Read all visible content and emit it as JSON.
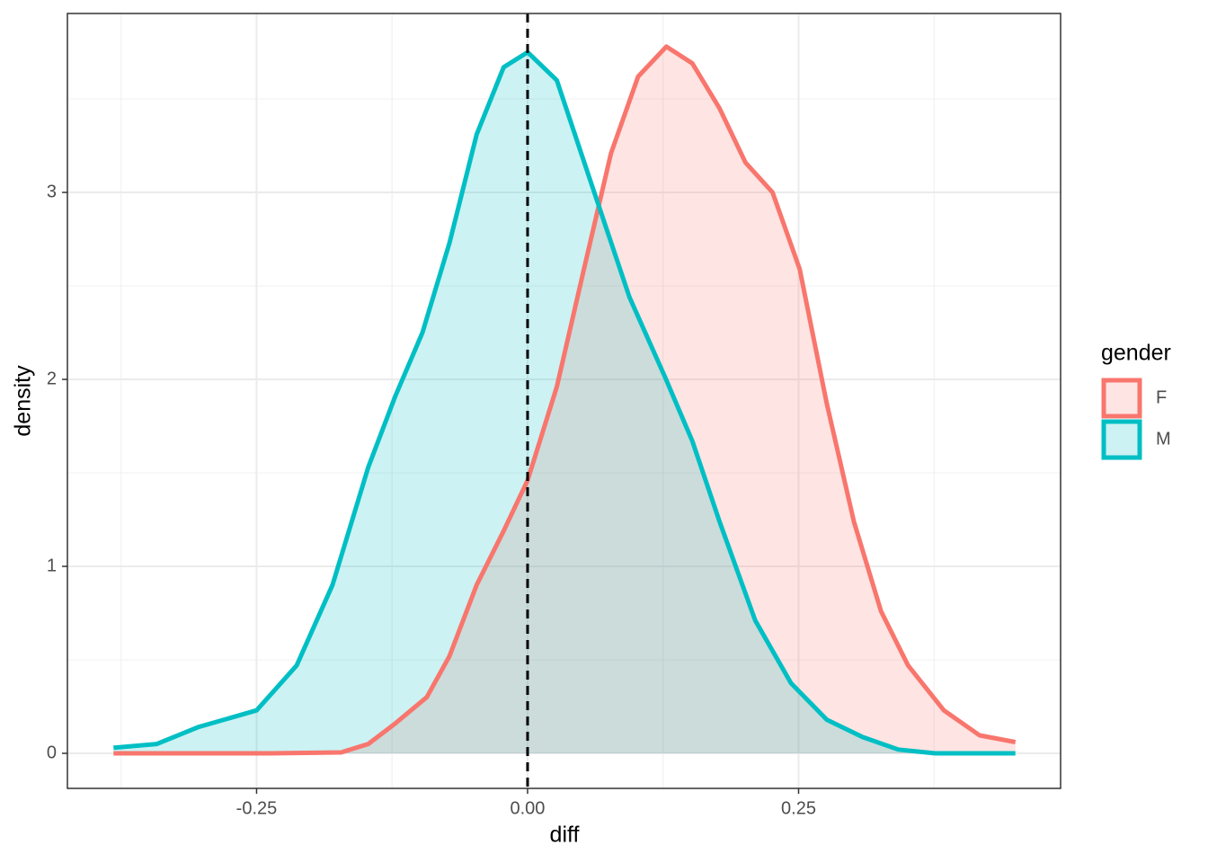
{
  "chart_data": {
    "type": "density",
    "x_label": "diff",
    "y_label": "density",
    "xlim": [
      -0.4245,
      0.4917
    ],
    "ylim": [
      -0.1875,
      3.957
    ],
    "xticks": [
      -0.25,
      {
        "value": 0,
        "label": "0.00"
      },
      0.25
    ],
    "yticks": [
      0,
      1,
      2,
      3
    ],
    "grid": true,
    "vline": 0,
    "legend_title": "gender",
    "legend_position": "right",
    "series": [
      {
        "name": "F",
        "color": "#F8766D",
        "x": [
          -0.382,
          -0.238,
          -0.172,
          -0.147,
          -0.122,
          -0.093,
          -0.072,
          -0.047,
          -0.022,
          0,
          0.027,
          0.052,
          0.077,
          0.102,
          0.128,
          0.152,
          0.177,
          0.201,
          0.226,
          0.251,
          0.276,
          0.301,
          0.326,
          0.351,
          0.384,
          0.417,
          0.45
        ],
        "values": [
          0,
          0,
          0.005,
          0.05,
          0.16,
          0.3,
          0.52,
          0.9,
          1.19,
          1.46,
          1.96,
          2.59,
          3.21,
          3.62,
          3.78,
          3.69,
          3.45,
          3.16,
          3.0,
          2.59,
          1.87,
          1.24,
          0.76,
          0.47,
          0.23,
          0.096,
          0.06
        ]
      },
      {
        "name": "M",
        "color": "#00BFC4",
        "x": [
          -0.382,
          -0.342,
          -0.304,
          -0.25,
          -0.213,
          -0.18,
          -0.147,
          -0.122,
          -0.097,
          -0.072,
          -0.047,
          -0.022,
          0,
          0.027,
          0.061,
          0.094,
          0.127,
          0.152,
          0.177,
          0.21,
          0.243,
          0.276,
          0.309,
          0.342,
          0.376,
          0.45
        ],
        "values": [
          0.03,
          0.05,
          0.14,
          0.23,
          0.47,
          0.9,
          1.53,
          1.91,
          2.25,
          2.73,
          3.31,
          3.67,
          3.75,
          3.6,
          3.01,
          2.44,
          2.01,
          1.67,
          1.24,
          0.71,
          0.375,
          0.18,
          0.087,
          0.02,
          0,
          0
        ]
      }
    ]
  }
}
